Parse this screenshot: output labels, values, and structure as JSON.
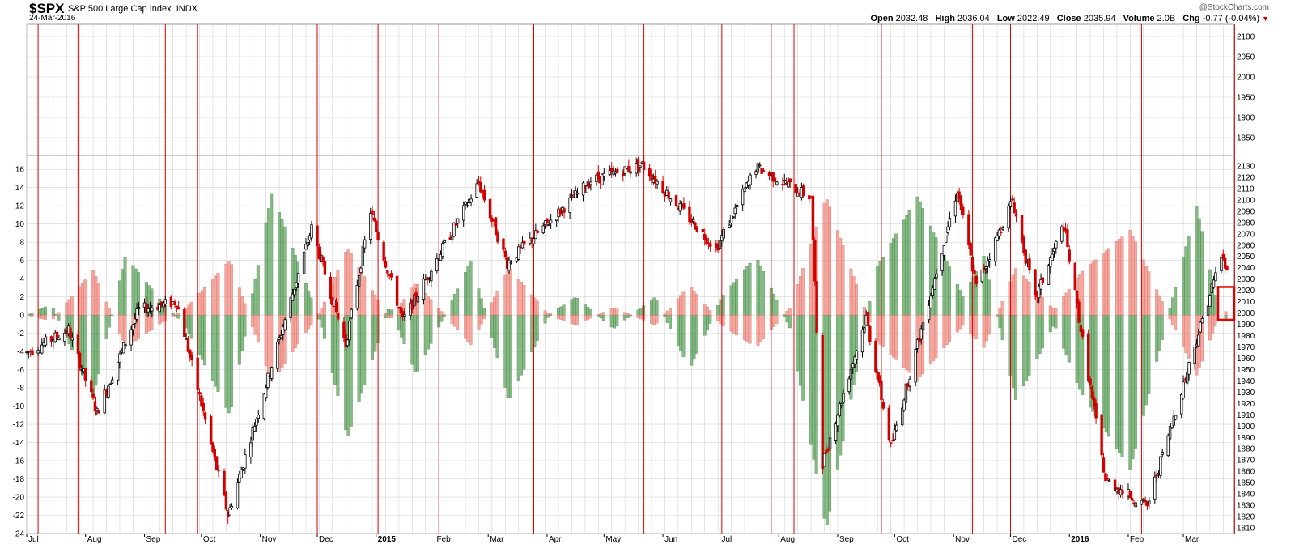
{
  "header": {
    "symbol": "$SPX",
    "name": "S&P 500 Large Cap Index",
    "exchange": "INDX",
    "date": "24-Mar-2016",
    "watermark": "@StockCharts.com",
    "open_label": "Open",
    "open": "2032.48",
    "high_label": "High",
    "high": "2036.04",
    "low_label": "Low",
    "low": "2022.49",
    "close_label": "Close",
    "close": "2035.94",
    "volume_label": "Volume",
    "volume": "2.0B",
    "chg_label": "Chg",
    "chg": "-0.77 (-0.04%)"
  },
  "colors": {
    "grid": "#d4d4d4",
    "cycle_line": "#e00000",
    "hist_green": "#5fa35f",
    "hist_red": "#f08b80",
    "candle_up": "#000000",
    "candle_down": "#d00000"
  },
  "chart_data": {
    "type": "candlestick-with-oscillator",
    "x_labels": [
      "Jul",
      "Aug",
      "Sep",
      "Oct",
      "Nov",
      "Dec",
      "2015",
      "Feb",
      "Mar",
      "Apr",
      "May",
      "Jun",
      "Jul",
      "Aug",
      "Sep",
      "Oct",
      "Nov",
      "Dec",
      "2016",
      "Feb",
      "Mar"
    ],
    "x_range": [
      "2014-07-01",
      "2016-03-24"
    ],
    "price_axis": {
      "ticks_upper": [
        2100,
        2050,
        2000,
        1950,
        1900,
        1850
      ],
      "ticks_lower": [
        2130,
        2120,
        2110,
        2100,
        2090,
        2080,
        2070,
        2060,
        2050,
        2040,
        2030,
        2020,
        2010,
        2000,
        1990,
        1980,
        1970,
        1960,
        1950,
        1940,
        1930,
        1920,
        1910,
        1900,
        1890,
        1880,
        1870,
        1860,
        1850,
        1840,
        1830,
        1820,
        1810
      ],
      "range": [
        1805,
        2135
      ]
    },
    "oscillator_axis": {
      "ticks": [
        16,
        14,
        12,
        10,
        8,
        6,
        4,
        2,
        0,
        -2,
        -4,
        -6,
        -8,
        -10,
        -12,
        -14,
        -16,
        -18,
        -20,
        -22,
        -24
      ],
      "range": [
        -24,
        17
      ]
    },
    "cycle_lines": [
      "2014-07-07",
      "2014-07-28",
      "2014-09-12",
      "2014-09-29",
      "2014-12-01",
      "2015-01-02",
      "2015-02-03",
      "2015-03-02",
      "2015-03-25",
      "2015-05-22",
      "2015-07-02",
      "2015-07-28",
      "2015-08-09",
      "2015-08-28",
      "2015-09-24",
      "2015-11-11",
      "2015-12-01",
      "2016-02-08",
      "2016-03-28"
    ],
    "price_keypoints": [
      [
        "2014-07-01",
        1965
      ],
      [
        "2014-07-23",
        1985
      ],
      [
        "2014-08-07",
        1912
      ],
      [
        "2014-08-29",
        2003
      ],
      [
        "2014-09-18",
        2010
      ],
      [
        "2014-10-15",
        1821
      ],
      [
        "2014-11-28",
        2075
      ],
      [
        "2014-12-16",
        1972
      ],
      [
        "2014-12-29",
        2090
      ],
      [
        "2015-01-15",
        1993
      ],
      [
        "2015-02-24",
        2115
      ],
      [
        "2015-03-11",
        2044
      ],
      [
        "2015-04-24",
        2117
      ],
      [
        "2015-05-21",
        2131
      ],
      [
        "2015-06-29",
        2057
      ],
      [
        "2015-07-20",
        2129
      ],
      [
        "2015-08-18",
        2102
      ],
      [
        "2015-08-24",
        1867
      ],
      [
        "2015-09-16",
        1996
      ],
      [
        "2015-09-29",
        1881
      ],
      [
        "2015-11-03",
        2109
      ],
      [
        "2015-11-13",
        2023
      ],
      [
        "2015-12-02",
        2100
      ],
      [
        "2015-12-14",
        2012
      ],
      [
        "2015-12-29",
        2078
      ],
      [
        "2016-01-20",
        1852
      ],
      [
        "2016-02-11",
        1829
      ],
      [
        "2016-03-21",
        2051
      ],
      [
        "2016-03-24",
        2036
      ]
    ],
    "oscillator_keypoints": [
      [
        "2014-07-01",
        0
      ],
      [
        "2014-07-14",
        1.2
      ],
      [
        "2014-08-05",
        -9
      ],
      [
        "2014-08-22",
        6.5
      ],
      [
        "2014-09-12",
        1
      ],
      [
        "2014-09-22",
        -1
      ],
      [
        "2014-10-16",
        -11
      ],
      [
        "2014-11-07",
        13.5
      ],
      [
        "2014-12-03",
        -1
      ],
      [
        "2014-12-17",
        -13.5
      ],
      [
        "2015-01-08",
        1
      ],
      [
        "2015-01-22",
        -6.5
      ],
      [
        "2015-02-20",
        6
      ],
      [
        "2015-03-12",
        -9.5
      ],
      [
        "2015-04-02",
        0
      ],
      [
        "2015-04-16",
        2
      ],
      [
        "2015-05-06",
        -1.5
      ],
      [
        "2015-05-28",
        2
      ],
      [
        "2015-06-15",
        -6
      ],
      [
        "2015-07-02",
        2
      ],
      [
        "2015-07-20",
        6.5
      ],
      [
        "2015-08-07",
        -1.5
      ],
      [
        "2015-08-26",
        -23.5
      ],
      [
        "2015-09-21",
        5
      ],
      [
        "2015-10-13",
        13
      ],
      [
        "2015-11-06",
        2
      ],
      [
        "2015-11-17",
        6.5
      ],
      [
        "2015-12-04",
        -9.5
      ],
      [
        "2015-12-24",
        -1
      ],
      [
        "2016-01-07",
        -8.5
      ],
      [
        "2016-02-02",
        -17
      ],
      [
        "2016-02-22",
        0
      ],
      [
        "2016-03-08",
        12
      ],
      [
        "2016-03-18",
        2
      ],
      [
        "2016-03-24",
        -1
      ]
    ],
    "highlight_box": {
      "price_from": 1994,
      "price_to": 2023
    }
  }
}
